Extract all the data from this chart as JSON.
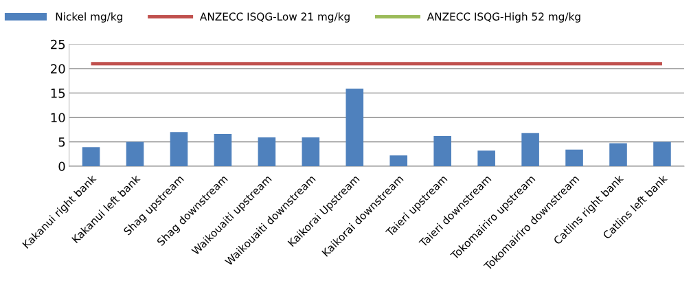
{
  "chart_data": {
    "type": "bar",
    "categories": [
      "Kakanui right bank",
      "Kakanui left bank",
      "Shag upstream",
      "Shag downstream",
      "Waikouaiti upstream",
      "Waikouaiti downstream",
      "Kaikorai Upstream",
      "Kaikorai downstream",
      "Taieri upstream",
      "Taieri downstream",
      "Tokomairiro upstream",
      "Tokomairiro downstream",
      "Catlins right bank",
      "Catlins left bank"
    ],
    "series": [
      {
        "name": "Nickel mg/kg",
        "color": "#4f81bd",
        "values": [
          3.9,
          5.0,
          7.0,
          6.6,
          5.9,
          5.9,
          15.9,
          2.2,
          6.2,
          3.2,
          6.8,
          3.4,
          4.7,
          5.0
        ]
      },
      {
        "name": "ANZECC ISQG-Low 21 mg/kg",
        "type": "line",
        "color": "#c0504d",
        "values": [
          21,
          21,
          21,
          21,
          21,
          21,
          21,
          21,
          21,
          21,
          21,
          21,
          21,
          21
        ]
      },
      {
        "name": "ANZECC ISQG-High 52 mg/kg",
        "type": "line",
        "color": "#9bbb59",
        "values": [
          null,
          null,
          null,
          null,
          null,
          null,
          null,
          null,
          null,
          null,
          null,
          null,
          null,
          null
        ]
      }
    ],
    "ylim": [
      0,
      25
    ],
    "yticks": [
      0,
      5,
      10,
      15,
      20,
      25
    ],
    "grid": "y",
    "legend": "top"
  }
}
